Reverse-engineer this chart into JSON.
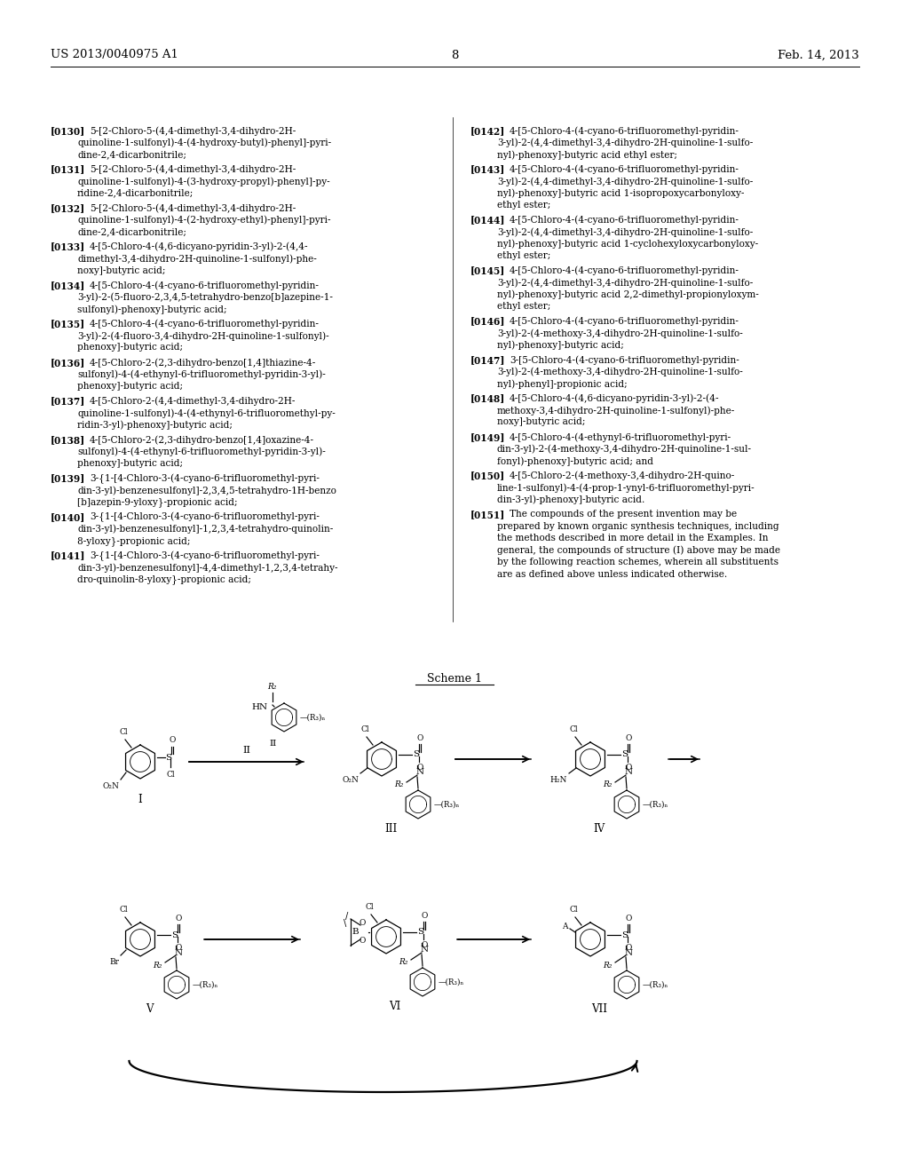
{
  "background": "#ffffff",
  "header_left": "US 2013/0040975 A1",
  "header_center": "8",
  "header_right": "Feb. 14, 2013",
  "left_entries": [
    {
      "tag": "[0130]",
      "lines": [
        "5-[2-Chloro-5-(4,4-dimethyl-3,4-dihydro-2H-",
        "quinoline-1-sulfonyl)-4-(4-hydroxy-butyl)-phenyl]-pyri-",
        "dine-2,4-dicarbonitrile;"
      ]
    },
    {
      "tag": "[0131]",
      "lines": [
        "5-[2-Chloro-5-(4,4-dimethyl-3,4-dihydro-2H-",
        "quinoline-1-sulfonyl)-4-(3-hydroxy-propyl)-phenyl]-py-",
        "ridine-2,4-dicarbonitrile;"
      ]
    },
    {
      "tag": "[0132]",
      "lines": [
        "5-[2-Chloro-5-(4,4-dimethyl-3,4-dihydro-2H-",
        "quinoline-1-sulfonyl)-4-(2-hydroxy-ethyl)-phenyl]-pyri-",
        "dine-2,4-dicarbonitrile;"
      ]
    },
    {
      "tag": "[0133]",
      "lines": [
        "4-[5-Chloro-4-(4,6-dicyano-pyridin-3-yl)-2-(4,4-",
        "dimethyl-3,4-dihydro-2H-quinoline-1-sulfonyl)-phe-",
        "noxy]-butyric acid;"
      ]
    },
    {
      "tag": "[0134]",
      "lines": [
        "4-[5-Chloro-4-(4-cyano-6-trifluoromethyl-pyridin-",
        "3-yl)-2-(5-fluoro-2,3,4,5-tetrahydro-benzo[b]azepine-1-",
        "sulfonyl)-phenoxy]-butyric acid;"
      ]
    },
    {
      "tag": "[0135]",
      "lines": [
        "4-[5-Chloro-4-(4-cyano-6-trifluoromethyl-pyridin-",
        "3-yl)-2-(4-fluoro-3,4-dihydro-2H-quinoline-1-sulfonyl)-",
        "phenoxy]-butyric acid;"
      ]
    },
    {
      "tag": "[0136]",
      "lines": [
        "4-[5-Chloro-2-(2,3-dihydro-benzo[1,4]thiazine-4-",
        "sulfonyl)-4-(4-ethynyl-6-trifluoromethyl-pyridin-3-yl)-",
        "phenoxy]-butyric acid;"
      ]
    },
    {
      "tag": "[0137]",
      "lines": [
        "4-[5-Chloro-2-(4,4-dimethyl-3,4-dihydro-2H-",
        "quinoline-1-sulfonyl)-4-(4-ethynyl-6-trifluoromethyl-py-",
        "ridin-3-yl)-phenoxy]-butyric acid;"
      ]
    },
    {
      "tag": "[0138]",
      "lines": [
        "4-[5-Chloro-2-(2,3-dihydro-benzo[1,4]oxazine-4-",
        "sulfonyl)-4-(4-ethynyl-6-trifluoromethyl-pyridin-3-yl)-",
        "phenoxy]-butyric acid;"
      ]
    },
    {
      "tag": "[0139]",
      "lines": [
        "3-{1-[4-Chloro-3-(4-cyano-6-trifluoromethyl-pyri-",
        "din-3-yl)-benzenesulfonyl]-2,3,4,5-tetrahydro-1H-benzo",
        "[b]azepin-9-yloxy}-propionic acid;"
      ]
    },
    {
      "tag": "[0140]",
      "lines": [
        "3-{1-[4-Chloro-3-(4-cyano-6-trifluoromethyl-pyri-",
        "din-3-yl)-benzenesulfonyl]-1,2,3,4-tetrahydro-quinolin-",
        "8-yloxy}-propionic acid;"
      ]
    },
    {
      "tag": "[0141]",
      "lines": [
        "3-{1-[4-Chloro-3-(4-cyano-6-trifluoromethyl-pyri-",
        "din-3-yl)-benzenesulfonyl]-4,4-dimethyl-1,2,3,4-tetrahy-",
        "dro-quinolin-8-yloxy}-propionic acid;"
      ]
    }
  ],
  "right_entries": [
    {
      "tag": "[0142]",
      "lines": [
        "4-[5-Chloro-4-(4-cyano-6-trifluoromethyl-pyridin-",
        "3-yl)-2-(4,4-dimethyl-3,4-dihydro-2H-quinoline-1-sulfo-",
        "nyl)-phenoxy]-butyric acid ethyl ester;"
      ]
    },
    {
      "tag": "[0143]",
      "lines": [
        "4-[5-Chloro-4-(4-cyano-6-trifluoromethyl-pyridin-",
        "3-yl)-2-(4,4-dimethyl-3,4-dihydro-2H-quinoline-1-sulfo-",
        "nyl)-phenoxy]-butyric acid 1-isopropoxycarbonyloxy-",
        "ethyl ester;"
      ]
    },
    {
      "tag": "[0144]",
      "lines": [
        "4-[5-Chloro-4-(4-cyano-6-trifluoromethyl-pyridin-",
        "3-yl)-2-(4,4-dimethyl-3,4-dihydro-2H-quinoline-1-sulfo-",
        "nyl)-phenoxy]-butyric acid 1-cyclohexyloxycarbonyloxy-",
        "ethyl ester;"
      ]
    },
    {
      "tag": "[0145]",
      "lines": [
        "4-[5-Chloro-4-(4-cyano-6-trifluoromethyl-pyridin-",
        "3-yl)-2-(4,4-dimethyl-3,4-dihydro-2H-quinoline-1-sulfo-",
        "nyl)-phenoxy]-butyric acid 2,2-dimethyl-propionyloxym-",
        "ethyl ester;"
      ]
    },
    {
      "tag": "[0146]",
      "lines": [
        "4-[5-Chloro-4-(4-cyano-6-trifluoromethyl-pyridin-",
        "3-yl)-2-(4-methoxy-3,4-dihydro-2H-quinoline-1-sulfo-",
        "nyl)-phenoxy]-butyric acid;"
      ]
    },
    {
      "tag": "[0147]",
      "lines": [
        "3-[5-Chloro-4-(4-cyano-6-trifluoromethyl-pyridin-",
        "3-yl)-2-(4-methoxy-3,4-dihydro-2H-quinoline-1-sulfo-",
        "nyl)-phenyl]-propionic acid;"
      ]
    },
    {
      "tag": "[0148]",
      "lines": [
        "4-[5-Chloro-4-(4,6-dicyano-pyridin-3-yl)-2-(4-",
        "methoxy-3,4-dihydro-2H-quinoline-1-sulfonyl)-phe-",
        "noxy]-butyric acid;"
      ]
    },
    {
      "tag": "[0149]",
      "lines": [
        "4-[5-Chloro-4-(4-ethynyl-6-trifluoromethyl-pyri-",
        "din-3-yl)-2-(4-methoxy-3,4-dihydro-2H-quinoline-1-sul-",
        "fonyl)-phenoxy]-butyric acid; and"
      ]
    },
    {
      "tag": "[0150]",
      "lines": [
        "4-[5-Chloro-2-(4-methoxy-3,4-dihydro-2H-quino-",
        "line-1-sulfonyl)-4-(4-prop-1-ynyl-6-trifluoromethyl-pyri-",
        "din-3-yl)-phenoxy]-butyric acid."
      ]
    },
    {
      "tag": "[0151]",
      "para": true,
      "lines": [
        "The compounds of the present invention may be",
        "prepared by known organic synthesis techniques, including",
        "the methods described in more detail in the Examples. In",
        "general, the compounds of structure (I) above may be made",
        "by the following reaction schemes, wherein all substituents",
        "are as defined above unless indicated otherwise."
      ]
    }
  ]
}
